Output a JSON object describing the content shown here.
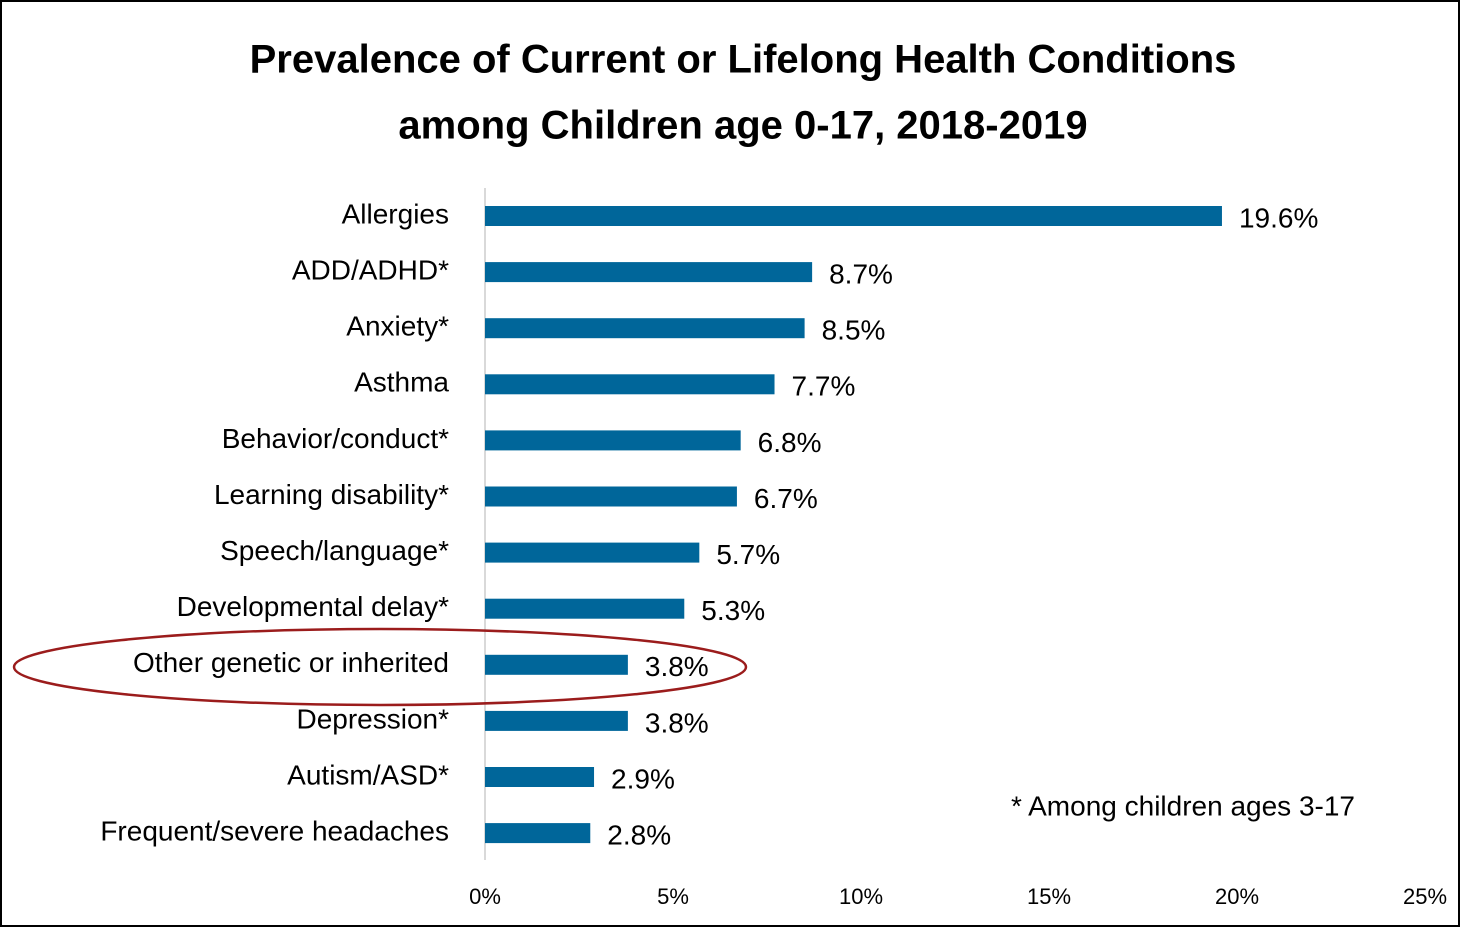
{
  "chart_data": {
    "type": "bar",
    "orientation": "horizontal",
    "title": [
      "Prevalence of Current or Lifelong Health Conditions",
      "among Children age 0-17, 2018-2019"
    ],
    "categories": [
      "Allergies",
      "ADD/ADHD*",
      "Anxiety*",
      "Asthma",
      "Behavior/conduct*",
      "Learning disability*",
      "Speech/language*",
      "Developmental delay*",
      "Other genetic or inherited",
      "Depression*",
      "Autism/ASD*",
      "Frequent/severe headaches"
    ],
    "values": [
      19.6,
      8.7,
      8.5,
      7.7,
      6.8,
      6.7,
      5.7,
      5.3,
      3.8,
      3.8,
      2.9,
      2.8
    ],
    "value_labels": [
      "19.6%",
      "8.7%",
      "8.5%",
      "7.7%",
      "6.8%",
      "6.7%",
      "5.7%",
      "5.3%",
      "3.8%",
      "3.8%",
      "2.9%",
      "2.8%"
    ],
    "color": "#00669a",
    "xlim": [
      0,
      25
    ],
    "xticks": [
      {
        "value": 0,
        "label": "0%"
      },
      {
        "value": 5,
        "label": "5%"
      },
      {
        "value": 10,
        "label": "10%"
      },
      {
        "value": 15,
        "label": "15%"
      },
      {
        "value": 20,
        "label": "20%"
      },
      {
        "value": 25,
        "label": "25%"
      }
    ],
    "grid": false,
    "annotation": "* Among children ages 3-17"
  }
}
